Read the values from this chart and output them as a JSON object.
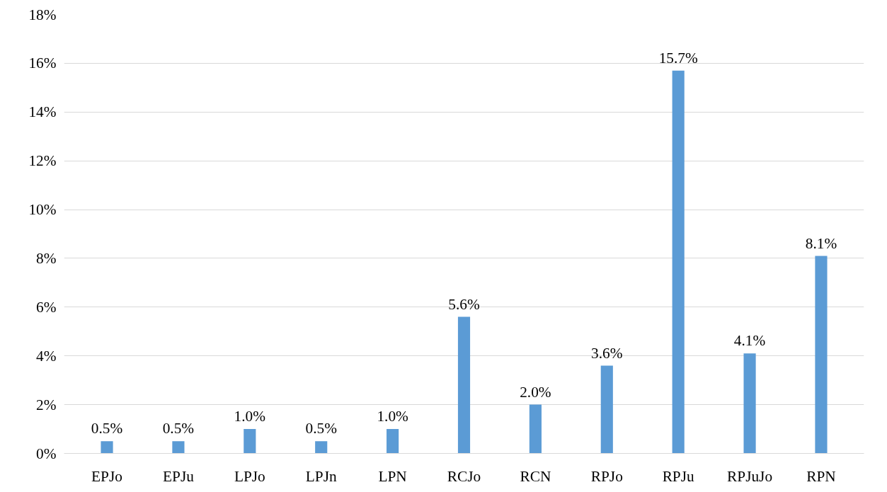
{
  "chart_data": {
    "type": "bar",
    "categories": [
      "EPJo",
      "EPJu",
      "LPJo",
      "LPJn",
      "LPN",
      "RCJo",
      "RCN",
      "RPJo",
      "RPJu",
      "RPJuJo",
      "RPN"
    ],
    "values": [
      0.5,
      0.5,
      1.0,
      0.5,
      1.0,
      5.6,
      2.0,
      3.6,
      15.7,
      4.1,
      8.1
    ],
    "value_labels": [
      "0.5%",
      "0.5%",
      "1.0%",
      "0.5%",
      "1.0%",
      "5.6%",
      "2.0%",
      "3.6%",
      "15.7%",
      "4.1%",
      "8.1%"
    ],
    "color": "#5b9bd5",
    "ylim": [
      0,
      18
    ],
    "yticks": [
      {
        "value": 0,
        "label": "0%"
      },
      {
        "value": 2,
        "label": "2%"
      },
      {
        "value": 4,
        "label": "4%"
      },
      {
        "value": 6,
        "label": "6%"
      },
      {
        "value": 8,
        "label": "8%"
      },
      {
        "value": 10,
        "label": "10%"
      },
      {
        "value": 12,
        "label": "12%"
      },
      {
        "value": 14,
        "label": "14%"
      },
      {
        "value": 16,
        "label": "16%"
      },
      {
        "value": 18,
        "label": "18%"
      }
    ],
    "grid": "y"
  }
}
